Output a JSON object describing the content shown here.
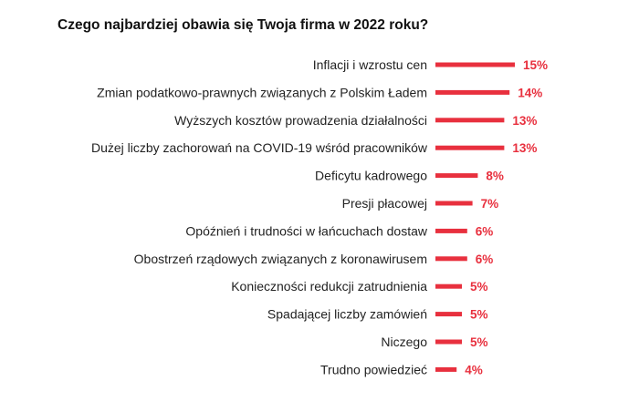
{
  "chart_data": {
    "type": "bar",
    "orientation": "horizontal",
    "title": "Czego najbardziej obawia się Twoja firma w 2022 roku?",
    "categories": [
      "Inflacji i wzrostu cen",
      "Zmian podatkowo-prawnych związanych z Polskim Ładem",
      "Wyższych kosztów prowadzenia działalności",
      "Dużej liczby zachorowań na COVID-19 wśród pracowników",
      "Deficytu kadrowego",
      "Presji płacowej",
      "Opóźnień i trudności w łańcuchach dostaw",
      "Obostrzeń rządowych związanych z koronawirusem",
      "Konieczności redukcji zatrudnienia",
      "Spadającej liczby zamówień",
      "Niczego",
      "Trudno powiedzieć"
    ],
    "values": [
      15,
      14,
      13,
      13,
      8,
      7,
      6,
      6,
      5,
      5,
      5,
      4
    ],
    "value_labels": [
      "15%",
      "14%",
      "13%",
      "13%",
      "8%",
      "7%",
      "6%",
      "6%",
      "5%",
      "5%",
      "5%",
      "4%"
    ],
    "unit": "%",
    "bar_color": "#e8303e",
    "value_label_color": "#e8303e",
    "xlabel": "",
    "ylabel": "",
    "legend": "none",
    "grid": false
  }
}
